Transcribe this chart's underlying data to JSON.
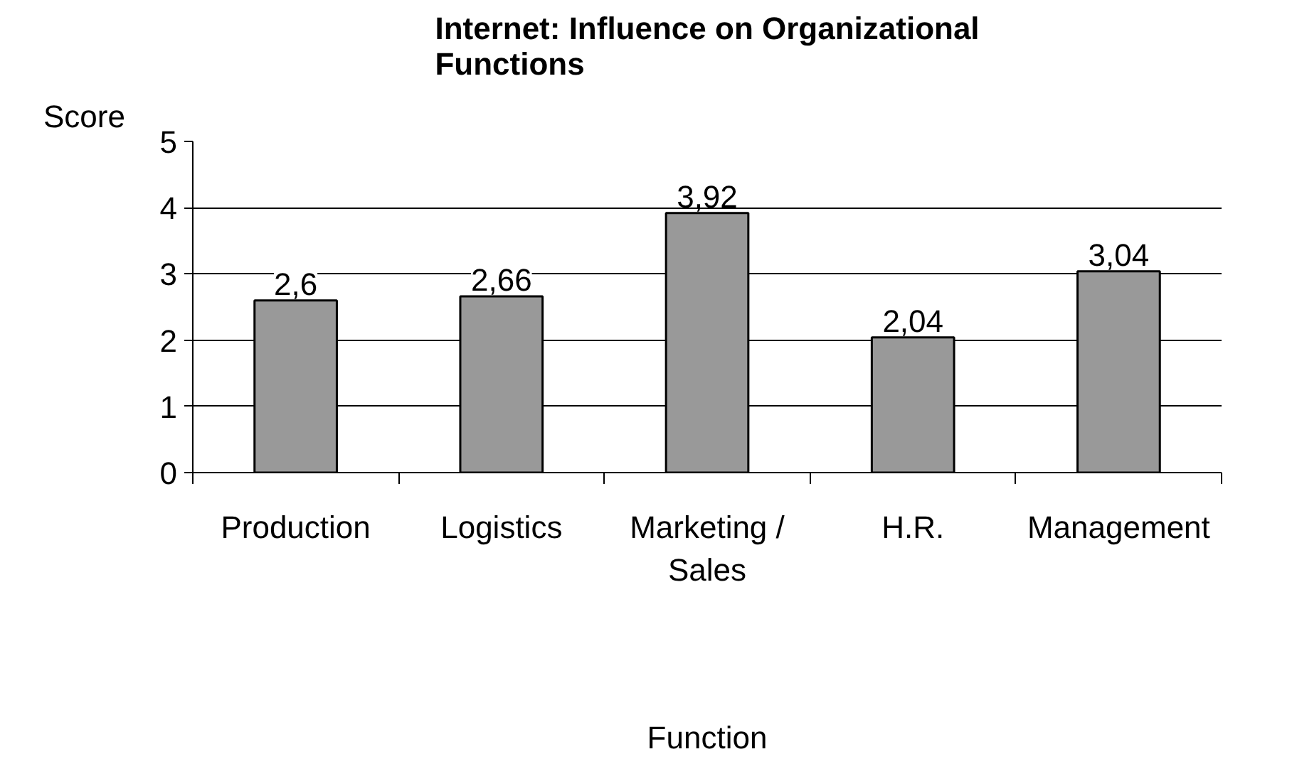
{
  "chart_data": {
    "type": "bar",
    "title": "Internet: Influence on Organizational\nFunctions",
    "ylabel": "Score",
    "xlabel": "Function",
    "categories": [
      "Production",
      "Logistics",
      "Marketing / Sales",
      "H.R.",
      "Management"
    ],
    "values": [
      2.6,
      2.66,
      3.92,
      2.04,
      3.04
    ],
    "value_labels": [
      "2,6",
      "2,66",
      "3,92",
      "2,04",
      "3,04"
    ],
    "color": "#999999",
    "ylim": [
      0,
      5
    ],
    "yticks": [
      0,
      1,
      2,
      3,
      4,
      5
    ],
    "grid": "y"
  }
}
